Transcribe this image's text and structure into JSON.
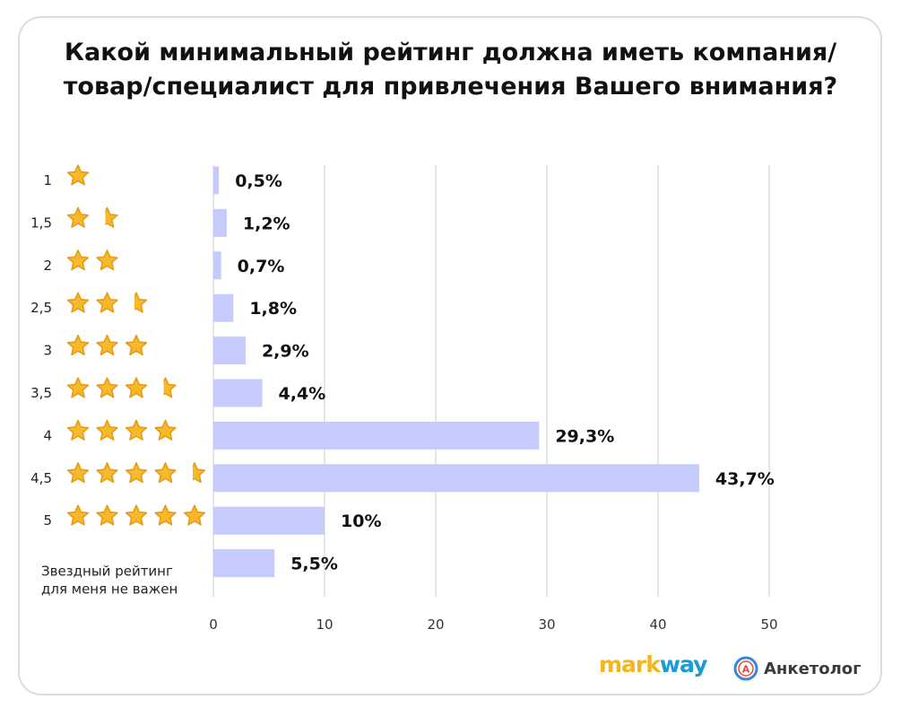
{
  "title_lines": [
    "Какой минимальный рейтинг должна иметь компания/",
    "товар/специалист для привлечения Вашего внимания?"
  ],
  "chart_data": {
    "type": "bar",
    "orientation": "horizontal",
    "title": "Какой минимальный рейтинг должна иметь компания/товар/специалист для привлечения Вашего внимания?",
    "categories": [
      "1",
      "1,5",
      "2",
      "2,5",
      "3",
      "3,5",
      "4",
      "4,5",
      "5",
      "Звездный рейтинг для меня не важен"
    ],
    "category_label_lines": [
      [
        "1"
      ],
      [
        "1,5"
      ],
      [
        "2"
      ],
      [
        "2,5"
      ],
      [
        "3"
      ],
      [
        "3,5"
      ],
      [
        "4"
      ],
      [
        "4,5"
      ],
      [
        "5"
      ],
      [
        "Звездный рейтинг",
        "для меня не важен"
      ]
    ],
    "stars": [
      1,
      1.5,
      2,
      2.5,
      3,
      3.5,
      4,
      4.5,
      5,
      0
    ],
    "values": [
      0.5,
      1.2,
      0.7,
      1.8,
      2.9,
      4.4,
      29.3,
      43.7,
      10,
      5.5
    ],
    "value_labels": [
      "0,5%",
      "1,2%",
      "0,7%",
      "1,8%",
      "2,9%",
      "4,4%",
      "29,3%",
      "43,7%",
      "10%",
      "5,5%"
    ],
    "x_ticks": [
      0,
      10,
      20,
      30,
      40,
      50
    ],
    "xlim": [
      0,
      50
    ],
    "grid": true,
    "bar_color": "#c5cbfb",
    "grid_color": "#cccccc",
    "star_color": "#f7b92a",
    "star_outline": "#e39a17"
  },
  "logos": {
    "markway": {
      "part1": "mark",
      "part2": "way"
    },
    "anketolog": {
      "icon_letter": "А",
      "text": "Анкетолог"
    }
  }
}
